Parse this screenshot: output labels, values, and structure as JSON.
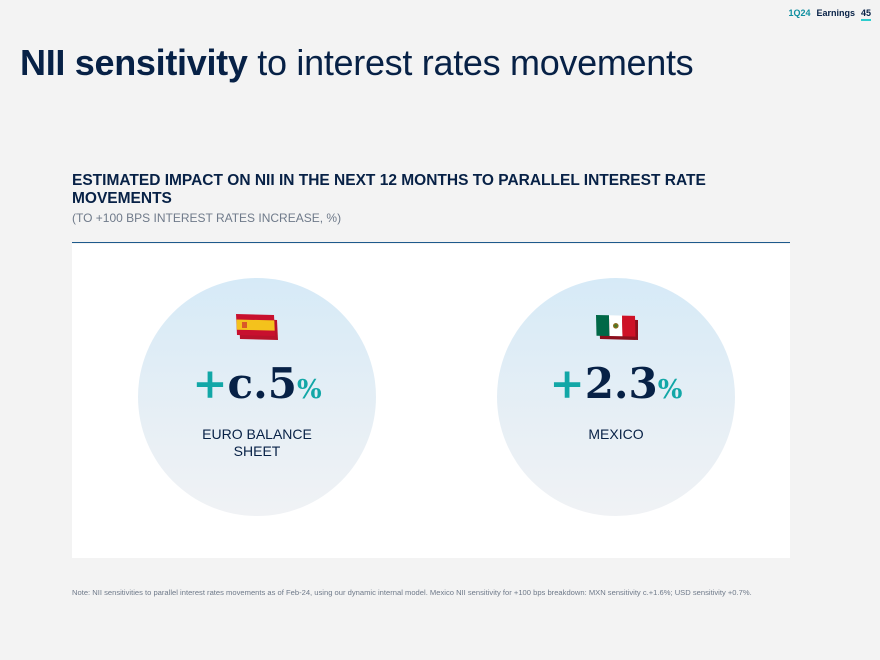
{
  "header": {
    "quarter": "1Q24",
    "label": "Earnings",
    "page": "45"
  },
  "title": {
    "bold": "NII sensitivity",
    "rest": " to interest rates movements"
  },
  "section": {
    "heading": "ESTIMATED IMPACT ON NII IN THE NEXT 12 MONTHS TO PARALLEL INTEREST RATE MOVEMENTS",
    "subheading": "(TO +100 BPS INTEREST RATES INCREASE, %)"
  },
  "items": [
    {
      "plus": "+",
      "value": "c.5",
      "unit": "%",
      "label": "EURO BALANCE SHEET",
      "flag": "spain-flag-icon"
    },
    {
      "plus": "+",
      "value": "2.3",
      "unit": "%",
      "label": "MEXICO",
      "flag": "mexico-flag-icon"
    }
  ],
  "footnote": "Note: NII sensitivities to parallel interest rates movements as of Feb-24, using our dynamic internal model. Mexico NII sensitivity for +100 bps breakdown: MXN sensitivity c.+1.6%; USD sensitivity +0.7%.",
  "colors": {
    "navy": "#072146",
    "teal": "#12a7a7",
    "aqua": "#2dcccd"
  }
}
